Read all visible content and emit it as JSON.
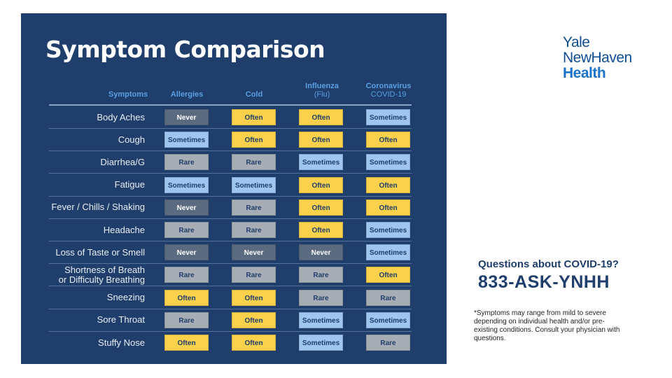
{
  "title": "Symptom Comparison",
  "columns": {
    "symptoms": "Symptoms",
    "allergies": "Allergies",
    "cold": "Cold",
    "influenza": "Influenza",
    "influenza_sub": "(Flu)",
    "coronavirus": "Coronavirus",
    "coronavirus_sub": "COVID-19"
  },
  "rows": [
    {
      "symptom": [
        "Body Aches"
      ],
      "values": [
        "Never",
        "Often",
        "Often",
        "Sometimes"
      ]
    },
    {
      "symptom": [
        "Cough"
      ],
      "values": [
        "Sometimes",
        "Often",
        "Often",
        "Often"
      ]
    },
    {
      "symptom": [
        "Diarrhea/G"
      ],
      "values": [
        "Rare",
        "Rare",
        "Sometimes",
        "Sometimes"
      ]
    },
    {
      "symptom": [
        "Fatigue"
      ],
      "values": [
        "Sometimes",
        "Sometimes",
        "Often",
        "Often"
      ]
    },
    {
      "symptom": [
        "Fever / Chills / Shaking"
      ],
      "values": [
        "Never",
        "Rare",
        "Often",
        "Often"
      ]
    },
    {
      "symptom": [
        "Headache"
      ],
      "values": [
        "Rare",
        "Rare",
        "Often",
        "Sometimes"
      ]
    },
    {
      "symptom": [
        "Loss of Taste or Smell"
      ],
      "values": [
        "Never",
        "Never",
        "Never",
        "Sometimes"
      ]
    },
    {
      "symptom": [
        "Shortness of Breath",
        "or Difficulty Breathing"
      ],
      "values": [
        "Rare",
        "Rare",
        "Rare",
        "Often"
      ]
    },
    {
      "symptom": [
        "Sneezing"
      ],
      "values": [
        "Often",
        "Often",
        "Rare",
        "Rare"
      ]
    },
    {
      "symptom": [
        "Sore Throat"
      ],
      "values": [
        "Rare",
        "Often",
        "Sometimes",
        "Sometimes"
      ]
    },
    {
      "symptom": [
        "Stuffy Nose"
      ],
      "values": [
        "Often",
        "Often",
        "Sometimes",
        "Rare"
      ]
    }
  ],
  "level_colors": {
    "Never": "#5a6b80",
    "Sometimes": "#9fc6ef",
    "Often": "#fad14b",
    "Rare": "#a7adb5"
  },
  "logo": {
    "line1": "Yale",
    "line2": "NewHaven",
    "line3": "Health"
  },
  "contact": {
    "question": "Questions about COVID-19?",
    "phone": "833-ASK-YNHH"
  },
  "footnote": "*Symptoms may range from mild to severe depending on individual health and/or pre-existing conditions. Consult your physician with questions."
}
